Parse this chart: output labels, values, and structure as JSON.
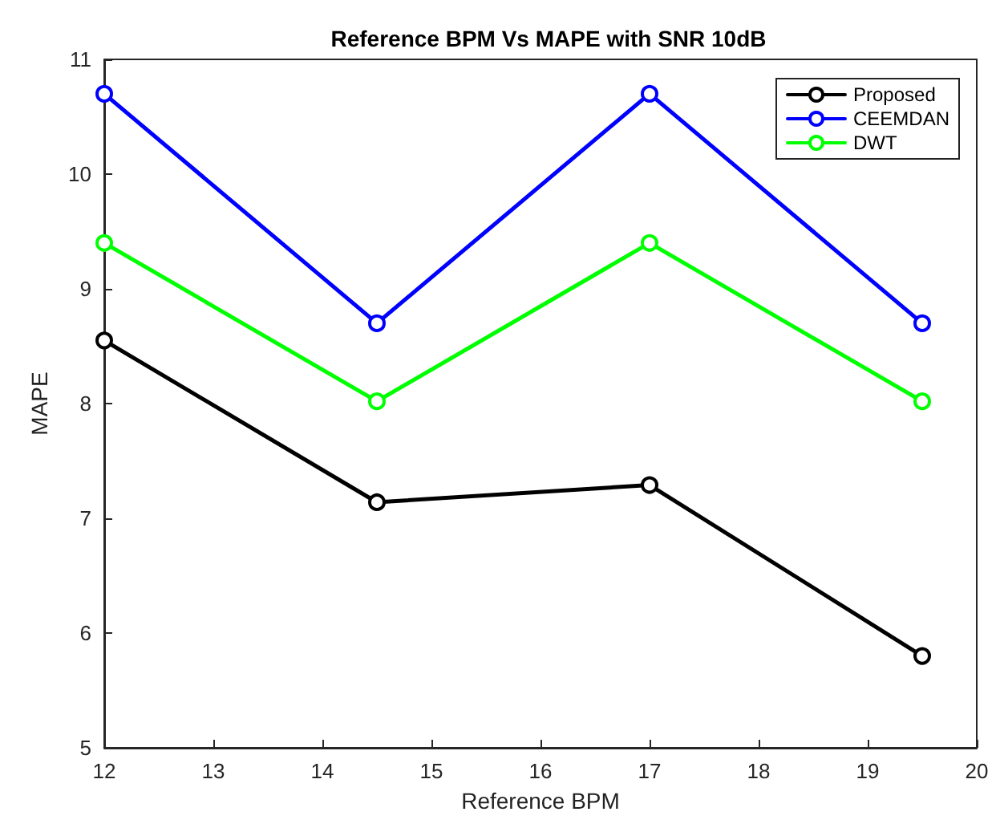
{
  "chart_data": {
    "type": "line",
    "title": "Reference BPM Vs MAPE with SNR 10dB",
    "xlabel": "Reference BPM",
    "ylabel": "MAPE",
    "x": [
      12,
      14.5,
      17,
      19.5
    ],
    "series": [
      {
        "name": "Proposed",
        "color": "#000000",
        "values": [
          8.55,
          7.14,
          7.29,
          5.8
        ]
      },
      {
        "name": "CEEMDAN",
        "color": "#0000ff",
        "values": [
          10.7,
          8.7,
          10.7,
          8.7
        ]
      },
      {
        "name": "DWT",
        "color": "#00ff00",
        "values": [
          9.4,
          8.02,
          9.4,
          8.02
        ]
      }
    ],
    "xlim": [
      12,
      20
    ],
    "xticks": [
      12,
      13,
      14,
      15,
      16,
      17,
      18,
      19,
      20
    ],
    "ylim": [
      5,
      11
    ],
    "yticks": [
      5,
      6,
      7,
      8,
      9,
      10,
      11
    ],
    "legend": "top right",
    "marker": "circle",
    "line_style": "solid",
    "grid": false
  }
}
